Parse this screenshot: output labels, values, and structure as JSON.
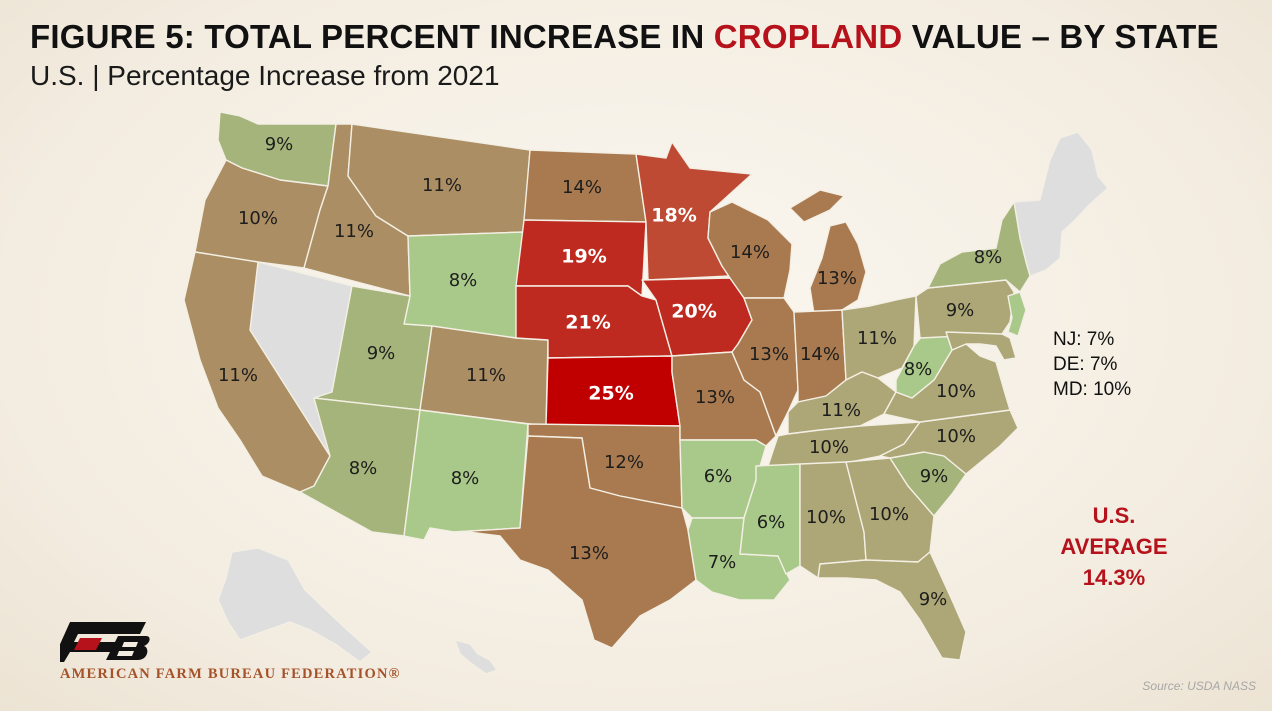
{
  "title_prefix": "FIGURE 5: TOTAL PERCENT INCREASE IN ",
  "title_highlight": "CROPLAND",
  "title_suffix": " VALUE – BY STATE",
  "subtitle": "U.S. | Percentage Increase from 2021",
  "colors": {
    "lightest_green": "#a9c98a",
    "green": "#a4b47a",
    "olive": "#ada676",
    "tan": "#ab8e63",
    "brown": "#a97a4f",
    "red_orange": "#bf4a34",
    "red": "#be2a20",
    "dark_red": "#c00000",
    "no_data": "#dedede",
    "highlight": "#b5121b"
  },
  "states": [
    {
      "id": "WA",
      "value": "9%",
      "color": "green"
    },
    {
      "id": "OR",
      "value": "10%",
      "color": "tan"
    },
    {
      "id": "CA",
      "value": "11%",
      "color": "tan"
    },
    {
      "id": "ID",
      "value": "11%",
      "color": "tan"
    },
    {
      "id": "MT",
      "value": "11%",
      "color": "tan"
    },
    {
      "id": "WY",
      "value": "8%",
      "color": "lightest_green"
    },
    {
      "id": "UT",
      "value": "9%",
      "color": "green"
    },
    {
      "id": "CO",
      "value": "11%",
      "color": "tan"
    },
    {
      "id": "AZ",
      "value": "8%",
      "color": "green"
    },
    {
      "id": "NM",
      "value": "8%",
      "color": "lightest_green"
    },
    {
      "id": "ND",
      "value": "14%",
      "color": "brown"
    },
    {
      "id": "SD",
      "value": "19%",
      "color": "red"
    },
    {
      "id": "NE",
      "value": "21%",
      "color": "red"
    },
    {
      "id": "KS",
      "value": "25%",
      "color": "dark_red"
    },
    {
      "id": "OK",
      "value": "12%",
      "color": "brown"
    },
    {
      "id": "TX",
      "value": "13%",
      "color": "brown"
    },
    {
      "id": "MN",
      "value": "18%",
      "color": "red_orange"
    },
    {
      "id": "IA",
      "value": "20%",
      "color": "red"
    },
    {
      "id": "MO",
      "value": "13%",
      "color": "brown"
    },
    {
      "id": "AR",
      "value": "6%",
      "color": "lightest_green"
    },
    {
      "id": "LA",
      "value": "7%",
      "color": "lightest_green"
    },
    {
      "id": "WI",
      "value": "14%",
      "color": "brown"
    },
    {
      "id": "IL",
      "value": "13%",
      "color": "brown"
    },
    {
      "id": "MI",
      "value": "13%",
      "color": "brown"
    },
    {
      "id": "IN",
      "value": "14%",
      "color": "brown"
    },
    {
      "id": "OH",
      "value": "11%",
      "color": "olive"
    },
    {
      "id": "KY",
      "value": "11%",
      "color": "olive"
    },
    {
      "id": "TN",
      "value": "10%",
      "color": "olive"
    },
    {
      "id": "MS",
      "value": "6%",
      "color": "lightest_green"
    },
    {
      "id": "AL",
      "value": "10%",
      "color": "olive"
    },
    {
      "id": "GA",
      "value": "10%",
      "color": "olive"
    },
    {
      "id": "FL",
      "value": "9%",
      "color": "olive"
    },
    {
      "id": "SC",
      "value": "9%",
      "color": "green"
    },
    {
      "id": "NC",
      "value": "10%",
      "color": "olive"
    },
    {
      "id": "VA",
      "value": "10%",
      "color": "olive"
    },
    {
      "id": "WV",
      "value": "8%",
      "color": "lightest_green"
    },
    {
      "id": "PA",
      "value": "9%",
      "color": "olive"
    },
    {
      "id": "NY",
      "value": "8%",
      "color": "green"
    }
  ],
  "small_states": [
    "NJ: 7%",
    "DE: 7%",
    "MD: 10%"
  ],
  "us_average": {
    "line1": "U.S.",
    "line2": "AVERAGE",
    "line3": "14.3%"
  },
  "org_name": "AMERICAN FARM BUREAU FEDERATION®",
  "source": "Source: USDA NASS"
}
